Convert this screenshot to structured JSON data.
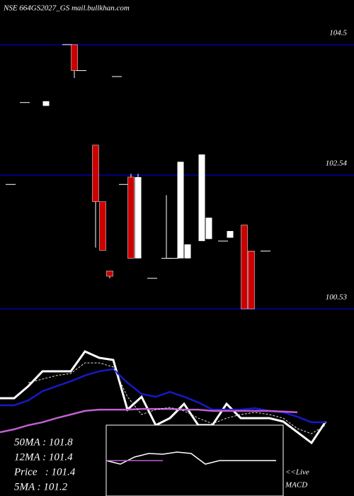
{
  "chart_data": [
    {
      "type": "candlestick",
      "title": "NSE 664GS2027_GS mail.bullkhan.com",
      "categories": [
        null,
        null,
        null,
        null,
        null,
        null,
        null,
        null,
        null,
        null,
        null,
        null,
        null,
        null,
        null,
        null,
        null,
        null,
        null,
        null,
        null,
        null,
        null,
        null,
        null,
        null,
        null,
        null,
        null,
        null,
        null,
        null,
        null,
        null,
        null,
        null,
        null
      ],
      "open": [
        102.4,
        null,
        103.63,
        null,
        null,
        103.58,
        null,
        null,
        104.5,
        104.5,
        104.11,
        null,
        102.99,
        102.14,
        101.1,
        104.02,
        102.4,
        102.51,
        101.29,
        null,
        100.99,
        null,
        101.29,
        101.29,
        101.29,
        101.29,
        null,
        101.55,
        101.58,
        null,
        101.55,
        101.6,
        null,
        101.79,
        101.4,
        null,
        101.4
      ],
      "high": [
        102.4,
        null,
        103.63,
        null,
        null,
        103.65,
        null,
        null,
        104.5,
        104.5,
        104.11,
        null,
        102.99,
        102.14,
        101.1,
        104.02,
        102.4,
        102.56,
        102.56,
        null,
        100.99,
        null,
        102.24,
        101.29,
        102.74,
        101.5,
        null,
        102.85,
        101.9,
        null,
        101.55,
        101.7,
        null,
        101.79,
        101.4,
        null,
        101.4
      ],
      "low": [
        102.4,
        null,
        103.63,
        null,
        null,
        103.58,
        null,
        null,
        104.5,
        104.0,
        104.11,
        null,
        101.45,
        101.41,
        100.99,
        104.02,
        102.4,
        101.29,
        101.29,
        null,
        100.99,
        null,
        101.29,
        101.29,
        101.29,
        101.29,
        null,
        101.55,
        101.58,
        null,
        101.55,
        101.6,
        null,
        100.53,
        100.53,
        null,
        101.4
      ],
      "close": [
        102.4,
        null,
        103.63,
        null,
        null,
        103.65,
        null,
        null,
        104.5,
        104.11,
        104.11,
        null,
        102.14,
        101.41,
        101.02,
        104.02,
        102.4,
        101.29,
        102.51,
        null,
        100.99,
        null,
        101.29,
        101.29,
        102.74,
        101.5,
        null,
        102.85,
        101.9,
        null,
        101.55,
        101.7,
        null,
        100.53,
        100.53,
        null,
        101.4
      ],
      "ylim": [
        100.53,
        105.17
      ],
      "yticks": [
        100.53,
        102.54,
        104.5
      ],
      "up_color": "#ffffff",
      "down_color": "#cc0000",
      "grid": true,
      "grid_color": "#000080"
    },
    {
      "type": "line",
      "ylim": [
        0,
        100
      ],
      "series": [
        {
          "color": "#ffffff",
          "values": [
            54.1,
            54.1,
            60.8,
            69.0,
            69.0,
            69.0,
            80.0,
            76.5,
            75.3,
            47.8,
            54.9,
            39.2,
            43.1,
            51.0,
            39.2,
            39.2,
            51.0,
            43.1,
            43.1,
            43.1,
            41.2,
            35.3,
            29.4,
            41.2
          ]
        },
        {
          "color": "#1818c8",
          "values": [
            50.2,
            50.2,
            52.9,
            58.0,
            60.8,
            63.5,
            66.7,
            69.0,
            70.2,
            62.7,
            56.5,
            54.9,
            57.6,
            54.9,
            51.8,
            47.8,
            47.8,
            47.8,
            48.6,
            47.1,
            46.3,
            43.9,
            40.8,
            40.8
          ]
        },
        {
          "color": "#c060d0",
          "values": [
            35.3,
            36.9,
            39.2,
            40.8,
            43.1,
            45.1,
            47.1,
            47.8,
            47.8,
            47.8,
            48.2,
            48.2,
            48.2,
            47.8,
            47.8,
            47.1,
            47.1,
            47.1,
            47.1,
            47.1,
            46.7,
            46.3,
            null,
            null
          ]
        },
        {
          "color": "#dddddd",
          "dashed": true,
          "values": [
            null,
            null,
            62.7,
            64.7,
            66.7,
            67.8,
            73.7,
            73.7,
            71.4,
            54.9,
            45.1,
            47.8,
            49.0,
            47.1,
            43.1,
            40.0,
            43.1,
            45.1,
            46.3,
            45.1,
            43.1,
            37.3,
            34.5,
            39.2
          ]
        }
      ],
      "annotations": [
        "50MA : 101.8",
        "12MA : 101.4",
        "Price   : 101.4",
        "5MA : 101.2"
      ]
    },
    {
      "type": "line",
      "title": "MACD",
      "subtitle": "<<Live",
      "ylim": [
        -5,
        5
      ],
      "series": [
        {
          "color": "#ffffff",
          "values": [
            0,
            -0.5,
            0.5,
            1.0,
            0.9,
            1.2,
            1.0,
            -0.5,
            0,
            0,
            0,
            0,
            0
          ]
        },
        {
          "color": "#c060d0",
          "values": [
            0,
            0,
            0,
            0,
            0,
            null,
            null,
            null,
            null,
            null,
            null,
            null,
            null
          ]
        }
      ]
    }
  ]
}
